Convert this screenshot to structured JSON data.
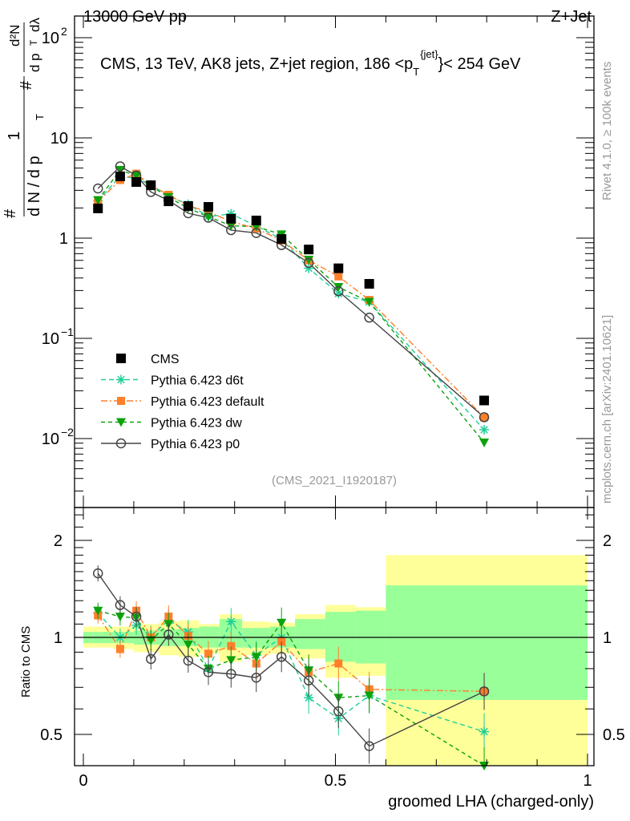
{
  "header": {
    "left": "13000 GeV pp",
    "right": "Z+Jet"
  },
  "side": {
    "top": "Rivet 4.1.0, ≥ 100k events",
    "bottom": "mcplots.cern.ch [arXiv:2401.10621]"
  },
  "analysis_tag": "(CMS_2021_I1920187)",
  "chart_data": {
    "type": "scatter",
    "title": "CMS, 13 TeV, AK8 jets, Z+jet region, 186 <p_T^{jet}< 254 GeV",
    "title_parts": {
      "main": "CMS, 13 TeV, AK8 jets, Z+jet region, 186 <p",
      "sup": "{jet}",
      "sub": "T",
      "end": "}< 254 GeV"
    },
    "ylabel": "1/(dN/dp_T) d²N/(dp_T dλ)",
    "ylabel_parts": {
      "num1": "1",
      "den1": "d N / d p",
      "num2": "d²N",
      "den2": "d p",
      "den3": "dλ",
      "sub": "T",
      "hash": "#"
    },
    "xlabel": "groomed LHA (charged-only)",
    "ratio_ylabel": "Ratio to CMS",
    "xlim": [
      0,
      1
    ],
    "ylim": [
      0.002,
      150
    ],
    "ratio_ylim": [
      0.4,
      2.5
    ],
    "yscale": "log",
    "x_ticks": [
      "0",
      "0.5",
      "1"
    ],
    "y_ticks": [
      {
        "base": "10",
        "exp": "2",
        "v": 100
      },
      {
        "base": "10",
        "exp": "",
        "v": 10
      },
      {
        "base": "1",
        "exp": "",
        "v": 1
      },
      {
        "base": "10",
        "exp": "−1",
        "v": 0.1
      },
      {
        "base": "10",
        "exp": "−2",
        "v": 0.01
      }
    ],
    "ratio_ticks": [
      {
        "label": "2",
        "v": 2
      },
      {
        "label": "1",
        "v": 1
      },
      {
        "label": "0.5",
        "v": 0.5
      }
    ],
    "x": [
      0.029,
      0.073,
      0.105,
      0.134,
      0.169,
      0.208,
      0.248,
      0.293,
      0.343,
      0.393,
      0.447,
      0.506,
      0.567,
      0.795
    ],
    "bin_edges": [
      0,
      0.06,
      0.1,
      0.15,
      0.19,
      0.23,
      0.27,
      0.315,
      0.37,
      0.42,
      0.48,
      0.54,
      0.6,
      1.0
    ],
    "cms": {
      "name": "CMS",
      "values": [
        1.98,
        4.13,
        3.63,
        3.37,
        2.33,
        2.09,
        2.05,
        1.56,
        1.5,
        0.98,
        0.77,
        0.5,
        0.35,
        0.024
      ]
    },
    "stat_band": {
      "lo": [
        0.96,
        0.96,
        0.95,
        0.94,
        0.94,
        0.93,
        0.93,
        0.93,
        0.93,
        0.92,
        0.84,
        0.83,
        0.64,
        0.77
      ],
      "hi": [
        1.04,
        1.04,
        1.05,
        1.06,
        1.07,
        1.08,
        1.14,
        1.07,
        1.08,
        1.14,
        1.2,
        1.21,
        1.45,
        1.36
      ]
    },
    "total_band": {
      "lo": [
        0.93,
        0.92,
        0.9,
        0.88,
        0.87,
        0.89,
        0.84,
        0.88,
        0.89,
        0.86,
        0.75,
        0.76,
        0.38,
        0.42
      ],
      "hi": [
        1.08,
        1.08,
        1.1,
        1.12,
        1.13,
        1.1,
        1.18,
        1.12,
        1.11,
        1.18,
        1.26,
        1.24,
        1.8,
        1.64
      ]
    },
    "series": [
      {
        "name": "Pythia 6.423 d6t",
        "color": "#1fcf9a",
        "marker": "star",
        "dash": "6,4",
        "ratio": [
          1.19,
          1.0,
          1.09,
          1.01,
          1.13,
          1.04,
          0.8,
          1.12,
          0.88,
          1.0,
          0.65,
          0.56,
          0.66,
          0.51
        ]
      },
      {
        "name": "Pythia 6.423 default",
        "color": "#ff7f2a",
        "marker": "square",
        "dash": "8,3,2,3",
        "ratio": [
          1.17,
          0.92,
          1.21,
          1.0,
          1.16,
          1.01,
          0.89,
          0.94,
          0.83,
          0.97,
          0.78,
          0.83,
          0.69,
          0.68
        ]
      },
      {
        "name": "Pythia 6.423 dw",
        "color": "#0ca20c",
        "marker": "tri",
        "dash": "5,4",
        "ratio": [
          1.21,
          1.16,
          1.15,
          0.98,
          1.1,
          0.95,
          0.8,
          0.85,
          0.87,
          1.11,
          0.79,
          0.65,
          0.66,
          0.38
        ]
      },
      {
        "name": "Pythia 6.423 p0",
        "color": "#444444",
        "marker": "circle",
        "dash": "",
        "ratio": [
          1.58,
          1.26,
          1.16,
          0.857,
          1.02,
          0.847,
          0.78,
          0.77,
          0.75,
          0.87,
          0.735,
          0.59,
          0.46,
          0.68
        ]
      }
    ],
    "legend_position": "lower-left"
  }
}
